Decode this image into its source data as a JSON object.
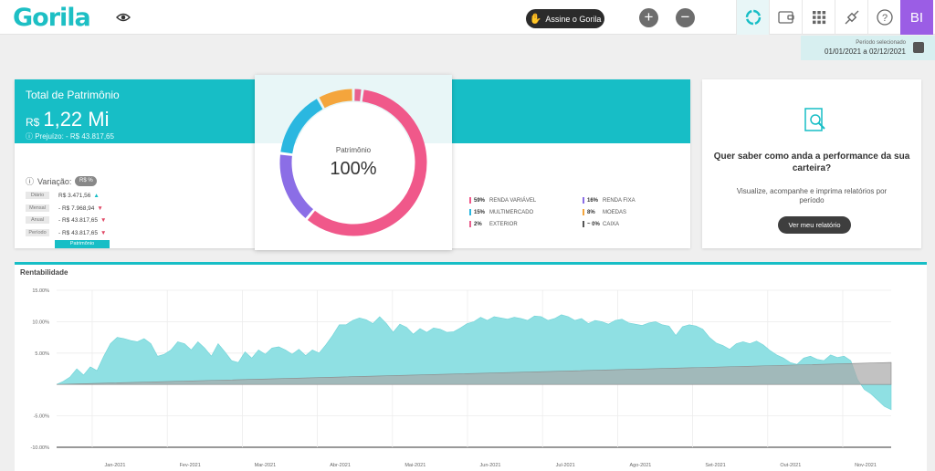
{
  "header": {
    "logo": "Gorila",
    "assine_label": "Assine o Gorila",
    "add_label": "+",
    "remove_label": "−",
    "avatar_initials": "BI"
  },
  "periodo": {
    "label": "Período selecionado",
    "value": "01/01/2021 a 02/12/2021"
  },
  "patrimonio": {
    "title": "Total de Patrimônio",
    "currency": "R$",
    "value": "1,22 Mi",
    "loss_text": "ⓘ Prejuízo: - R$ 43.817,65",
    "variacao_label": "Variação:",
    "toggle_label": "R$ %",
    "rows": [
      {
        "tag": "Diário",
        "value": "R$ 3.471,56",
        "dir": "▲"
      },
      {
        "tag": "Mensal",
        "value": "- R$ 7.968,94",
        "dir": "▼"
      },
      {
        "tag": "Anual",
        "value": "- R$ 43.817,65",
        "dir": "▼"
      },
      {
        "tag": "Período",
        "value": "- R$ 43.817,65",
        "dir": "▼"
      }
    ],
    "tab_label": "Patrimônio",
    "donut_label": "Patrimônio",
    "donut_value": "100%"
  },
  "allocation": [
    {
      "pct": "59%",
      "name": "RENDA VARIÁVEL",
      "color": "#f0588a"
    },
    {
      "pct": "16%",
      "name": "RENDA FIXA",
      "color": "#8b6ee6"
    },
    {
      "pct": "15%",
      "name": "MULTIMERCADO",
      "color": "#2ab7e0"
    },
    {
      "pct": "8%",
      "name": "MOEDAS",
      "color": "#f4a53c"
    },
    {
      "pct": "2%",
      "name": "EXTERIOR",
      "color": "#e8608e"
    },
    {
      "pct": "~ 0%",
      "name": "CAIXA",
      "color": "#555555"
    }
  ],
  "relatorio": {
    "question": "Quer saber como anda a performance da sua carteira?",
    "description": "Visualize, acompanhe e imprima relatórios por período",
    "button": "Ver meu relatório"
  },
  "chart_data": {
    "type": "area",
    "title": "Rentabilidade",
    "ylim": [
      -10,
      15
    ],
    "y_ticks": [
      "15.00%",
      "10.00%",
      "5.00%",
      "",
      "-5.00%",
      "-10.00%"
    ],
    "x_ticks": [
      "Jan-2021",
      "Fev-2021",
      "Mar-2021",
      "Abr-2021",
      "Mai-2021",
      "Jun-2021",
      "Jul-2021",
      "Ago-2021",
      "Set-2021",
      "Out-2021",
      "Nov-2021"
    ],
    "series": [
      {
        "color": "#8fe0e3",
        "values": [
          0,
          0.5,
          1.2,
          2.5,
          1.5,
          2.8,
          2.2,
          4.5,
          6.5,
          7.5,
          7.3,
          7.0,
          6.8,
          7.3,
          6.5,
          4.5,
          4.8,
          5.5,
          6.8,
          6.5,
          5.5,
          6.8,
          5.8,
          4.5,
          6.5,
          5.2,
          3.8,
          3.5,
          5.2,
          4.2,
          5.5,
          4.8,
          5.8,
          6.0,
          5.5,
          4.8,
          5.6,
          4.6,
          5.5,
          5.0,
          6.3,
          7.8,
          9.5,
          9.5,
          10.2,
          10.6,
          10.3,
          9.7,
          10.8,
          9.7,
          8.3,
          9.6,
          9.1,
          8.0,
          8.9,
          8.3,
          9.0,
          8.8,
          8.3,
          8.4,
          9.0,
          9.7,
          10.0,
          10.7,
          10.2,
          10.8,
          10.6,
          10.4,
          10.7,
          10.5,
          10.2,
          10.9,
          10.8,
          10.2,
          10.5,
          11.1,
          10.8,
          10.2,
          10.5,
          9.7,
          10.2,
          10.0,
          9.6,
          10.2,
          10.4,
          9.8,
          9.6,
          9.4,
          9.8,
          10.0,
          9.5,
          9.3,
          7.8,
          9.2,
          9.5,
          9.3,
          8.8,
          7.5,
          6.6,
          6.2,
          5.6,
          6.5,
          6.8,
          6.5,
          6.9,
          6.3,
          5.4,
          4.7,
          4.2,
          3.5,
          3.2,
          4.2,
          4.5,
          4.0,
          3.8,
          4.7,
          4.3,
          4.5,
          3.8,
          0.8,
          -0.8,
          -1.5,
          -2.5,
          -3.5,
          -4.0
        ]
      },
      {
        "color": "#a8a8a8",
        "values": [
          0,
          3.5
        ]
      }
    ]
  }
}
